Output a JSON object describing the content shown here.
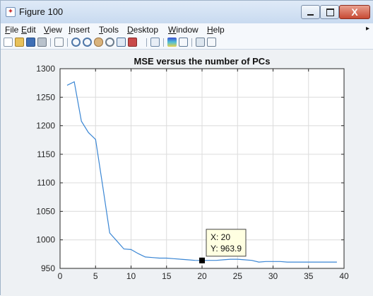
{
  "window": {
    "title": "Figure 100",
    "close_glyph": "X"
  },
  "menu": {
    "items": [
      "File",
      "Edit",
      "View",
      "Insert",
      "Tools",
      "Desktop",
      "Window",
      "Help"
    ],
    "more_glyph": "▸"
  },
  "toolbar": {
    "icons": [
      "new-figure-icon",
      "open-file-icon",
      "save-icon",
      "print-icon",
      "select-arrow-icon",
      "zoom-in-icon",
      "zoom-out-icon",
      "pan-icon",
      "rotate-3d-icon",
      "data-cursor-icon",
      "brush-icon",
      "link-plot-icon",
      "colorbar-icon",
      "legend-icon",
      "hide-plot-tools-icon",
      "show-plot-tools-icon"
    ]
  },
  "chart_data": {
    "type": "line",
    "title": "MSE versus the number of PCs",
    "xlabel": "",
    "ylabel": "",
    "xlim": [
      0,
      40
    ],
    "ylim": [
      950,
      1300
    ],
    "xticks": [
      0,
      5,
      10,
      15,
      20,
      25,
      30,
      35,
      40
    ],
    "yticks": [
      950,
      1000,
      1050,
      1100,
      1150,
      1200,
      1250,
      1300
    ],
    "grid": true,
    "line_color": "#3a86d4",
    "series": [
      {
        "x": [
          1,
          2,
          3,
          4,
          5,
          6,
          7,
          8,
          9,
          10,
          11,
          12,
          13,
          14,
          15,
          16,
          17,
          18,
          19,
          20,
          21,
          22,
          23,
          24,
          25,
          26,
          27,
          28,
          29,
          30,
          31,
          32,
          33,
          34,
          35,
          36,
          37,
          38,
          39
        ],
        "values": [
          1271,
          1277,
          1208,
          1188,
          1176,
          1095,
          1012,
          998,
          984,
          983,
          976,
          970,
          969,
          968,
          968,
          967,
          966,
          965,
          964,
          963.9,
          964,
          964,
          965,
          966,
          966,
          965,
          964,
          961,
          962,
          962,
          962,
          961,
          961,
          961,
          961,
          961,
          961,
          961,
          961
        ]
      }
    ],
    "datatip": {
      "x": 20,
      "y": 963.9,
      "x_text": "X: 20",
      "y_text": "Y: 963.9"
    }
  }
}
